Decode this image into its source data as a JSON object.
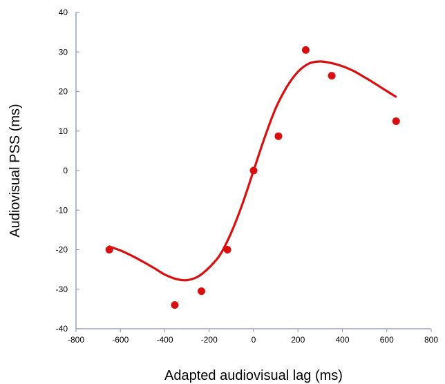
{
  "chart_data": {
    "type": "scatter",
    "title": "",
    "xlabel": "Adapted audiovisual lag (ms)",
    "ylabel": "Audiovisual PSS (ms)",
    "xlim": [
      -800,
      800
    ],
    "ylim": [
      -40,
      40
    ],
    "xticks": [
      -800,
      -600,
      -400,
      -200,
      0,
      200,
      400,
      600,
      800
    ],
    "yticks": [
      -40,
      -30,
      -20,
      -10,
      0,
      10,
      20,
      30,
      40
    ],
    "grid": false,
    "legend": "none",
    "series": [
      {
        "kind": "points",
        "x": [
          -650,
          -355,
          -235,
          -118,
          0,
          112,
          235,
          352,
          642
        ],
        "y": [
          -20,
          -34,
          -30.5,
          -20,
          0,
          8.7,
          30.5,
          24,
          12.5
        ]
      },
      {
        "kind": "fit-curve",
        "x": [
          -650,
          -600,
          -550,
          -500,
          -450,
          -400,
          -350,
          -300,
          -250,
          -200,
          -150,
          -100,
          -50,
          0,
          50,
          100,
          150,
          200,
          250,
          300,
          350,
          400,
          450,
          500,
          550,
          600,
          640
        ],
        "y": [
          -19.2,
          -20.2,
          -21.5,
          -23.0,
          -24.6,
          -26.3,
          -27.4,
          -27.7,
          -26.8,
          -24.5,
          -21.2,
          -15.6,
          -8.4,
          0.0,
          8.4,
          15.8,
          21.2,
          25.0,
          27.1,
          27.6,
          27.2,
          26.4,
          25.2,
          23.6,
          21.9,
          20.1,
          18.7
        ]
      }
    ],
    "colors": {
      "axis": "#9aa0c8",
      "data": "#d90f0f"
    }
  }
}
